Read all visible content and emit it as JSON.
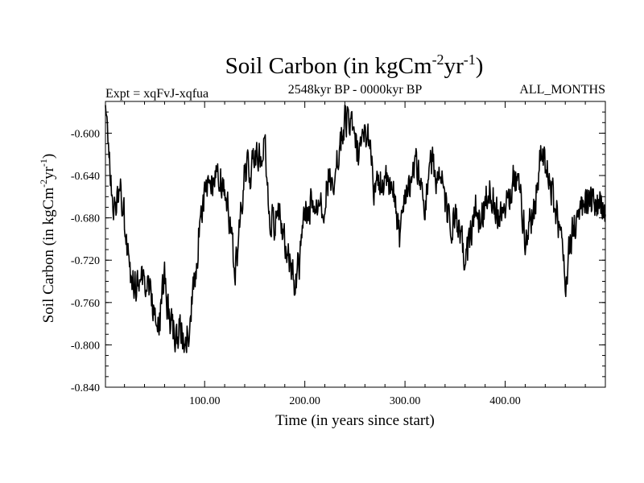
{
  "chart_data": {
    "type": "line",
    "title_parts": [
      "Soil Carbon (in kgCm",
      "-2",
      "yr",
      "-1",
      ")"
    ],
    "subtitle_left": "Expt = xqFvJ-xqfua",
    "subtitle_center": "2548kyr BP - 0000kyr BP",
    "subtitle_right": "ALL_MONTHS",
    "xlabel": "Time (in years since start)",
    "ylabel_parts": [
      "Soil Carbon (in kgCm",
      "-2",
      "yr",
      "-1",
      ")"
    ],
    "xlim": [
      1,
      500
    ],
    "ylim": [
      -0.84,
      -0.57
    ],
    "xticks": [
      100,
      200,
      300,
      400
    ],
    "xtick_labels": [
      "100.00",
      "200.00",
      "300.00",
      "400.00"
    ],
    "yticks": [
      -0.84,
      -0.8,
      -0.76,
      -0.72,
      -0.68,
      -0.64,
      -0.6
    ],
    "ytick_labels": [
      "-0.840",
      "-0.800",
      "-0.760",
      "-0.720",
      "-0.680",
      "-0.640",
      "-0.600"
    ],
    "series": [
      {
        "name": "Soil Carbon",
        "color": "#000000",
        "x": [
          1,
          4,
          7,
          10,
          14,
          18,
          22,
          26,
          30,
          35,
          40,
          45,
          50,
          55,
          60,
          65,
          70,
          75,
          80,
          85,
          90,
          95,
          100,
          105,
          110,
          115,
          120,
          125,
          130,
          135,
          140,
          145,
          150,
          155,
          160,
          165,
          170,
          175,
          180,
          185,
          190,
          195,
          200,
          205,
          210,
          215,
          220,
          225,
          230,
          235,
          240,
          245,
          250,
          255,
          260,
          265,
          270,
          275,
          280,
          285,
          290,
          295,
          300,
          305,
          310,
          315,
          320,
          325,
          330,
          335,
          340,
          345,
          350,
          355,
          360,
          365,
          370,
          375,
          380,
          385,
          390,
          395,
          400,
          405,
          410,
          415,
          420,
          425,
          430,
          435,
          440,
          445,
          450,
          455,
          460,
          465,
          470,
          475,
          480,
          485,
          490,
          495,
          500
        ],
        "y": [
          -0.585,
          -0.615,
          -0.655,
          -0.67,
          -0.65,
          -0.665,
          -0.7,
          -0.735,
          -0.745,
          -0.74,
          -0.74,
          -0.745,
          -0.77,
          -0.78,
          -0.735,
          -0.78,
          -0.79,
          -0.785,
          -0.795,
          -0.78,
          -0.735,
          -0.69,
          -0.655,
          -0.645,
          -0.65,
          -0.64,
          -0.66,
          -0.68,
          -0.73,
          -0.695,
          -0.63,
          -0.64,
          -0.615,
          -0.625,
          -0.61,
          -0.68,
          -0.685,
          -0.675,
          -0.7,
          -0.72,
          -0.74,
          -0.72,
          -0.675,
          -0.67,
          -0.665,
          -0.665,
          -0.665,
          -0.635,
          -0.64,
          -0.61,
          -0.59,
          -0.585,
          -0.61,
          -0.625,
          -0.6,
          -0.605,
          -0.66,
          -0.645,
          -0.645,
          -0.655,
          -0.66,
          -0.7,
          -0.655,
          -0.645,
          -0.63,
          -0.64,
          -0.675,
          -0.62,
          -0.64,
          -0.64,
          -0.665,
          -0.69,
          -0.68,
          -0.7,
          -0.72,
          -0.7,
          -0.67,
          -0.685,
          -0.665,
          -0.65,
          -0.67,
          -0.675,
          -0.665,
          -0.655,
          -0.64,
          -0.655,
          -0.7,
          -0.685,
          -0.665,
          -0.62,
          -0.63,
          -0.65,
          -0.67,
          -0.695,
          -0.74,
          -0.7,
          -0.685,
          -0.675,
          -0.665,
          -0.665,
          -0.665,
          -0.67,
          -0.675
        ]
      }
    ]
  }
}
